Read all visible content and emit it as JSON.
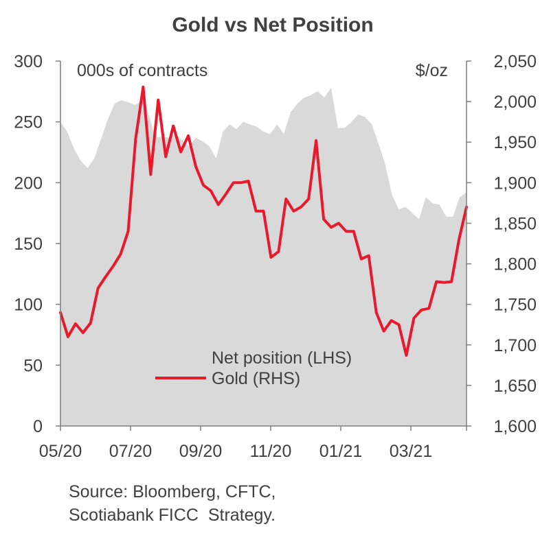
{
  "chart_data": {
    "type": "area+line",
    "title": "Gold  vs Net Position",
    "left_axis_unit": "000s of contracts",
    "right_axis_unit": "$/oz",
    "left_ylim": [
      0,
      300
    ],
    "right_ylim": [
      1600,
      2050
    ],
    "left_ticks": [
      "0",
      "50",
      "100",
      "150",
      "200",
      "250",
      "300"
    ],
    "right_ticks": [
      "1,600",
      "1,650",
      "1,700",
      "1,750",
      "1,800",
      "1,850",
      "1,900",
      "1,950",
      "2,000",
      "2,050"
    ],
    "x_tick_labels": [
      "05/20",
      "07/20",
      "09/20",
      "11/20",
      "01/21",
      "03/21"
    ],
    "grid": false,
    "legend_position": "bottom-center",
    "colors": {
      "net_position": "#d9d9d9",
      "gold": "#e8192c",
      "axis": "#7f7f7f",
      "text": "#404040"
    },
    "series": [
      {
        "name": "Net position (LHS)",
        "axis": "left",
        "style": "area",
        "values": [
          250,
          242,
          228,
          218,
          212,
          220,
          236,
          252,
          265,
          268,
          266,
          264,
          267,
          257,
          237,
          238,
          237,
          240,
          235,
          230,
          237,
          234,
          230,
          220,
          242,
          248,
          244,
          250,
          248,
          246,
          242,
          240,
          248,
          240,
          258,
          265,
          270,
          272,
          275,
          270,
          278,
          245,
          245,
          250,
          256,
          254,
          248,
          232,
          215,
          190,
          178,
          180,
          175,
          170,
          188,
          183,
          182,
          172,
          172,
          188,
          192
        ]
      },
      {
        "name": "Gold (RHS)",
        "axis": "right",
        "style": "line",
        "values": [
          1740,
          1710,
          1726,
          1715,
          1727,
          1770,
          1784,
          1797,
          1812,
          1840,
          1954,
          2018,
          1910,
          2002,
          1932,
          1970,
          1938,
          1958,
          1920,
          1897,
          1890,
          1873,
          1886,
          1900,
          1900,
          1902,
          1865,
          1865,
          1808,
          1815,
          1880,
          1865,
          1870,
          1880,
          1952,
          1855,
          1845,
          1850,
          1840,
          1840,
          1806,
          1810,
          1740,
          1717,
          1730,
          1725,
          1687,
          1733,
          1743,
          1745,
          1778,
          1777,
          1778,
          1830,
          1870
        ]
      }
    ]
  },
  "source": {
    "line1": "Source: Bloomberg, CFTC,",
    "line2": "Scotiabank FICC  Strategy."
  }
}
